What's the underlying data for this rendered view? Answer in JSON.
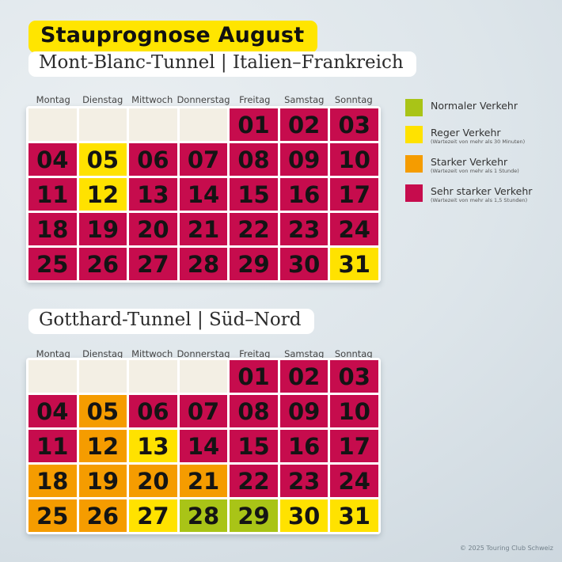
{
  "header": {
    "title": "Stauprognose August"
  },
  "weekdays": [
    "Montag",
    "Dienstag",
    "Mittwoch",
    "Donnerstag",
    "Freitag",
    "Samstag",
    "Sonntag"
  ],
  "colors": {
    "normal": "#a9c417",
    "reger": "#ffe200",
    "stark": "#f59c00",
    "sehr_stark": "#c60c4d",
    "blank": "#f3efe4",
    "highlight": "#ffe500"
  },
  "legend": {
    "items": [
      {
        "label": "Normaler Verkehr",
        "sub": "",
        "color": "#a9c417"
      },
      {
        "label": "Reger Verkehr",
        "sub": "(Wartezeit von mehr als 30 Minuten)",
        "color": "#ffe200"
      },
      {
        "label": "Starker Verkehr",
        "sub": "(Wartezeit von mehr als 1 Stunde)",
        "color": "#f59c00"
      },
      {
        "label": "Sehr starker Verkehr",
        "sub": "(Wartezeit von mehr als 1,5 Stunden)",
        "color": "#c60c4d"
      }
    ]
  },
  "calendars": [
    {
      "title": "Mont-Blanc-Tunnel | Italien–Frankreich",
      "leading_blanks": 4,
      "days": [
        {
          "num": "01",
          "level": "sehr_stark"
        },
        {
          "num": "02",
          "level": "sehr_stark"
        },
        {
          "num": "03",
          "level": "sehr_stark"
        },
        {
          "num": "04",
          "level": "sehr_stark"
        },
        {
          "num": "05",
          "level": "reger"
        },
        {
          "num": "06",
          "level": "sehr_stark"
        },
        {
          "num": "07",
          "level": "sehr_stark"
        },
        {
          "num": "08",
          "level": "sehr_stark"
        },
        {
          "num": "09",
          "level": "sehr_stark"
        },
        {
          "num": "10",
          "level": "sehr_stark"
        },
        {
          "num": "11",
          "level": "sehr_stark"
        },
        {
          "num": "12",
          "level": "reger"
        },
        {
          "num": "13",
          "level": "sehr_stark"
        },
        {
          "num": "14",
          "level": "sehr_stark"
        },
        {
          "num": "15",
          "level": "sehr_stark"
        },
        {
          "num": "16",
          "level": "sehr_stark"
        },
        {
          "num": "17",
          "level": "sehr_stark"
        },
        {
          "num": "18",
          "level": "sehr_stark"
        },
        {
          "num": "19",
          "level": "sehr_stark"
        },
        {
          "num": "20",
          "level": "sehr_stark"
        },
        {
          "num": "21",
          "level": "sehr_stark"
        },
        {
          "num": "22",
          "level": "sehr_stark"
        },
        {
          "num": "23",
          "level": "sehr_stark"
        },
        {
          "num": "24",
          "level": "sehr_stark"
        },
        {
          "num": "25",
          "level": "sehr_stark"
        },
        {
          "num": "26",
          "level": "sehr_stark"
        },
        {
          "num": "27",
          "level": "sehr_stark"
        },
        {
          "num": "28",
          "level": "sehr_stark"
        },
        {
          "num": "29",
          "level": "sehr_stark"
        },
        {
          "num": "30",
          "level": "sehr_stark"
        },
        {
          "num": "31",
          "level": "reger"
        }
      ]
    },
    {
      "title": "Gotthard-Tunnel | Süd–Nord",
      "leading_blanks": 4,
      "days": [
        {
          "num": "01",
          "level": "sehr_stark"
        },
        {
          "num": "02",
          "level": "sehr_stark"
        },
        {
          "num": "03",
          "level": "sehr_stark"
        },
        {
          "num": "04",
          "level": "sehr_stark"
        },
        {
          "num": "05",
          "level": "stark"
        },
        {
          "num": "06",
          "level": "sehr_stark"
        },
        {
          "num": "07",
          "level": "sehr_stark"
        },
        {
          "num": "08",
          "level": "sehr_stark"
        },
        {
          "num": "09",
          "level": "sehr_stark"
        },
        {
          "num": "10",
          "level": "sehr_stark"
        },
        {
          "num": "11",
          "level": "sehr_stark"
        },
        {
          "num": "12",
          "level": "stark"
        },
        {
          "num": "13",
          "level": "reger"
        },
        {
          "num": "14",
          "level": "sehr_stark"
        },
        {
          "num": "15",
          "level": "sehr_stark"
        },
        {
          "num": "16",
          "level": "sehr_stark"
        },
        {
          "num": "17",
          "level": "sehr_stark"
        },
        {
          "num": "18",
          "level": "stark"
        },
        {
          "num": "19",
          "level": "stark"
        },
        {
          "num": "20",
          "level": "stark"
        },
        {
          "num": "21",
          "level": "stark"
        },
        {
          "num": "22",
          "level": "sehr_stark"
        },
        {
          "num": "23",
          "level": "sehr_stark"
        },
        {
          "num": "24",
          "level": "sehr_stark"
        },
        {
          "num": "25",
          "level": "stark"
        },
        {
          "num": "26",
          "level": "stark"
        },
        {
          "num": "27",
          "level": "reger"
        },
        {
          "num": "28",
          "level": "normal"
        },
        {
          "num": "29",
          "level": "normal"
        },
        {
          "num": "30",
          "level": "reger"
        },
        {
          "num": "31",
          "level": "reger"
        }
      ]
    }
  ],
  "footer": {
    "copyright": "© 2025 Touring Club Schweiz"
  }
}
